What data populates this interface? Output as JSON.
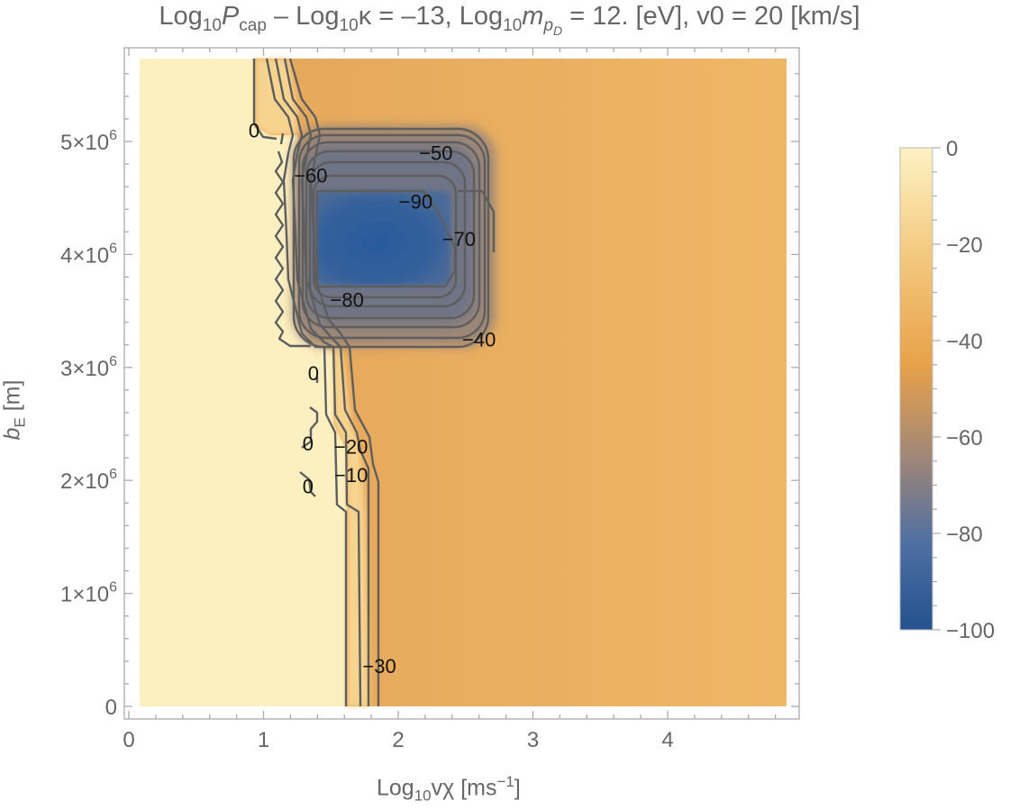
{
  "title": {
    "p1": "Log",
    "s1": "10",
    "p2": "P",
    "s2": "cap",
    "p3": " – Log",
    "s3": "10",
    "p4": "κ = –13, Log",
    "s4": "10",
    "p5": "m",
    "s5": "p",
    "s5b": "D",
    "p6": " = 12. [eV], v0 = 20 [km/s]"
  },
  "axes": {
    "xlabel_main": "Log",
    "xlabel_sub": "10",
    "xlabel_rest": "vχ [ms",
    "xlabel_sup": "−1",
    "xlabel_end": "]",
    "ylabel_main": "b",
    "ylabel_sub": "E",
    "ylabel_rest": " [m]"
  },
  "chart_data": {
    "type": "contour",
    "xlim": [
      0,
      4.95
    ],
    "ylim": [
      0,
      5700000.0
    ],
    "x_ticks": [
      {
        "value": 0,
        "label": "0"
      },
      {
        "value": 1,
        "label": "1"
      },
      {
        "value": 2,
        "label": "2"
      },
      {
        "value": 3,
        "label": "3"
      },
      {
        "value": 4,
        "label": "4"
      }
    ],
    "y_ticks": [
      {
        "value": 0,
        "label": "0"
      },
      {
        "value": 1000000,
        "label": "1×10",
        "exp": "6"
      },
      {
        "value": 2000000,
        "label": "2×10",
        "exp": "6"
      },
      {
        "value": 3000000,
        "label": "3×10",
        "exp": "6"
      },
      {
        "value": 4000000,
        "label": "4×10",
        "exp": "6"
      },
      {
        "value": 5000000,
        "label": "5×10",
        "exp": "6"
      }
    ],
    "contour_labels": [
      {
        "text": "0",
        "x": 0.93,
        "y": 5100000.0
      },
      {
        "text": "−60",
        "x": 1.35,
        "y": 4700000.0
      },
      {
        "text": "−50",
        "x": 2.28,
        "y": 4900000.0
      },
      {
        "text": "−90",
        "x": 2.13,
        "y": 4470000.0
      },
      {
        "text": "−70",
        "x": 2.45,
        "y": 4140000.0
      },
      {
        "text": "−80",
        "x": 1.62,
        "y": 3600000.0
      },
      {
        "text": "−40",
        "x": 2.6,
        "y": 3250000.0
      },
      {
        "text": "0",
        "x": 1.37,
        "y": 2950000.0
      },
      {
        "text": "0",
        "x": 1.33,
        "y": 2330000.0
      },
      {
        "text": "−20",
        "x": 1.65,
        "y": 2300000.0
      },
      {
        "text": "−10",
        "x": 1.65,
        "y": 2050000.0
      },
      {
        "text": "0",
        "x": 1.33,
        "y": 1950000.0
      },
      {
        "text": "−30",
        "x": 1.86,
        "y": 360000.0
      }
    ],
    "colorbar": {
      "range": [
        -100,
        0
      ],
      "ticks": [
        0,
        -20,
        -40,
        -60,
        -80,
        -100
      ],
      "tick_labels": [
        "0",
        "−20",
        "−40",
        "−60",
        "−80",
        "−100"
      ],
      "colors": [
        "#fdf2c4",
        "#efbe70",
        "#e8a14a",
        "#8f7d80",
        "#2f5fa3",
        "#24528e"
      ]
    },
    "grid": false,
    "legend": "right"
  }
}
